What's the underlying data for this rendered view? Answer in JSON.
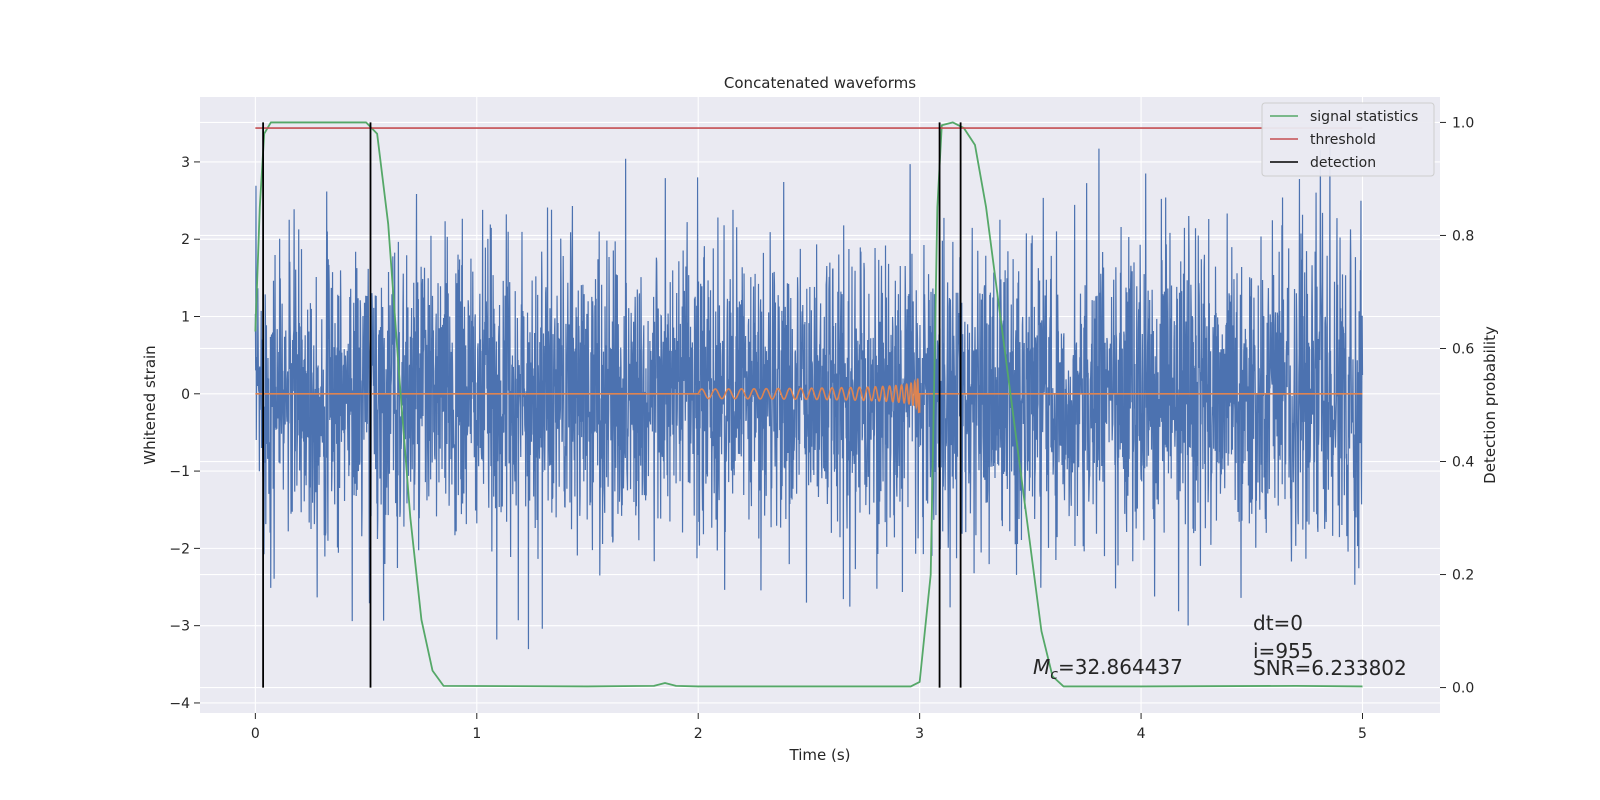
{
  "chart_data": {
    "type": "line",
    "title": "Concatenated waveforms",
    "xlabel": "Time (s)",
    "ylabel": "Whitened strain",
    "y2label": "Detection probability",
    "xlim": [
      -0.25,
      5.35
    ],
    "ylim": [
      -4.13,
      3.84
    ],
    "y2lim": [
      -0.045,
      1.045
    ],
    "xticks": [
      0,
      1,
      2,
      3,
      4,
      5
    ],
    "yticks": [
      -4,
      -3,
      -2,
      -1,
      0,
      1,
      2,
      3
    ],
    "y2ticks": [
      0.0,
      0.2,
      0.4,
      0.6,
      0.8,
      1.0
    ],
    "xtick_labels": [
      "0",
      "1",
      "2",
      "3",
      "4",
      "5"
    ],
    "ytick_labels": [
      "−4",
      "−3",
      "−2",
      "−1",
      "0",
      "1",
      "2",
      "3"
    ],
    "y2tick_labels": [
      "0.0",
      "0.2",
      "0.4",
      "0.6",
      "0.8",
      "1.0"
    ],
    "grid": true,
    "legend_position": "top-right",
    "colors": {
      "background": "#eaeaf2",
      "grid": "#ffffff",
      "strain": "#4c72b0",
      "template": "#dd8452",
      "signal_statistics": "#55a868",
      "threshold": "#c44e52",
      "detection": "#000000"
    },
    "legend": [
      {
        "name": "signal statistics",
        "color": "#55a868"
      },
      {
        "name": "threshold",
        "color": "#c44e52"
      },
      {
        "name": "detection",
        "color": "#000000"
      }
    ],
    "series": {
      "strain": {
        "x_range": [
          0,
          5
        ],
        "amplitude_range": [
          -3.8,
          3.5
        ]
      },
      "template": {
        "chirp_start": 2.0,
        "chirp_end": 3.0,
        "peak_amplitude": 1.1
      },
      "signal_statistics": {
        "x": [
          0,
          0.02,
          0.04,
          0.07,
          0.1,
          0.5,
          0.55,
          0.6,
          0.65,
          0.7,
          0.75,
          0.8,
          0.85,
          1.5,
          1.8,
          1.85,
          1.9,
          2.0,
          2.96,
          3.0,
          3.05,
          3.08,
          3.1,
          3.15,
          3.2,
          3.25,
          3.3,
          3.35,
          3.4,
          3.45,
          3.5,
          3.55,
          3.6,
          3.65,
          4.0,
          4.7,
          5.0
        ],
        "y": [
          0.63,
          0.85,
          0.98,
          1.0,
          1.0,
          1.0,
          0.98,
          0.82,
          0.55,
          0.3,
          0.12,
          0.03,
          0.003,
          0.002,
          0.003,
          0.008,
          0.003,
          0.002,
          0.002,
          0.01,
          0.2,
          0.85,
          0.995,
          1.0,
          0.99,
          0.96,
          0.85,
          0.7,
          0.55,
          0.4,
          0.25,
          0.1,
          0.02,
          0.002,
          0.002,
          0.003,
          0.002
        ]
      },
      "threshold": {
        "x": [
          0,
          5
        ],
        "y": 0.99
      },
      "detections": [
        0.035,
        0.52,
        3.09,
        3.185
      ]
    },
    "annotations": {
      "dt": "dt=0",
      "i": "i=955",
      "mc_symbol": "M",
      "mc_subscript": "c",
      "mc_value": "=32.864437",
      "snr": "SNR=6.233802"
    }
  }
}
